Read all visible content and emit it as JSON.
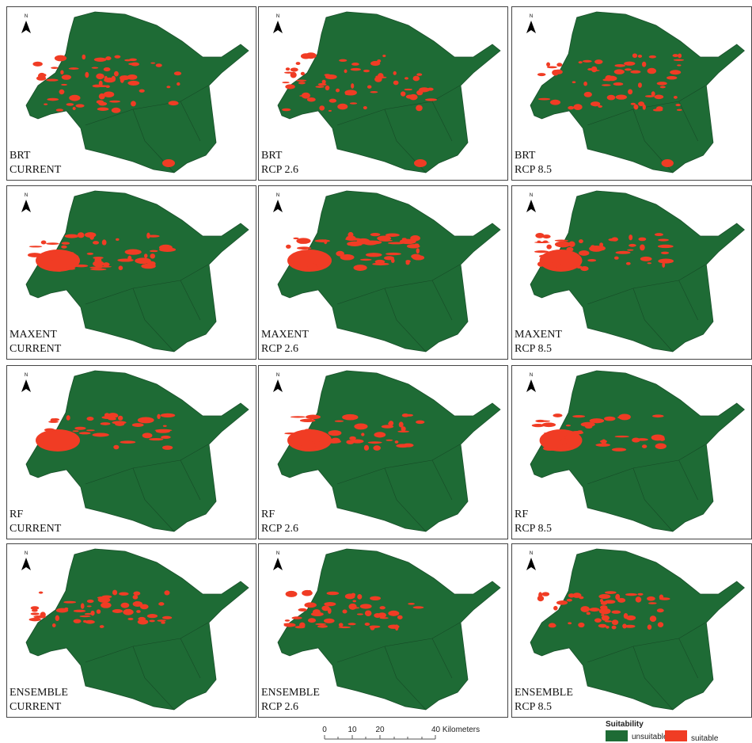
{
  "panels": [
    {
      "model": "BRT",
      "scenario": "CURRENT"
    },
    {
      "model": "BRT",
      "scenario": "RCP 2.6"
    },
    {
      "model": "BRT",
      "scenario": "RCP 8.5"
    },
    {
      "model": "MAXENT",
      "scenario": "CURRENT"
    },
    {
      "model": "MAXENT",
      "scenario": "RCP 2.6"
    },
    {
      "model": "MAXENT",
      "scenario": "RCP 8.5"
    },
    {
      "model": "RF",
      "scenario": "CURRENT"
    },
    {
      "model": "RF",
      "scenario": "RCP 2.6"
    },
    {
      "model": "RF",
      "scenario": "RCP 8.5"
    },
    {
      "model": "ENSEMBLE",
      "scenario": "CURRENT"
    },
    {
      "model": "ENSEMBLE",
      "scenario": "RCP 2.6"
    },
    {
      "model": "ENSEMBLE",
      "scenario": "RCP 8.5"
    }
  ],
  "north_label": "N",
  "scale_bar": {
    "labels": [
      "0",
      "10",
      "20",
      "40 Kilometers"
    ]
  },
  "legend": {
    "title": "Suitability",
    "items": [
      "unsuitable",
      "suitable"
    ]
  }
}
